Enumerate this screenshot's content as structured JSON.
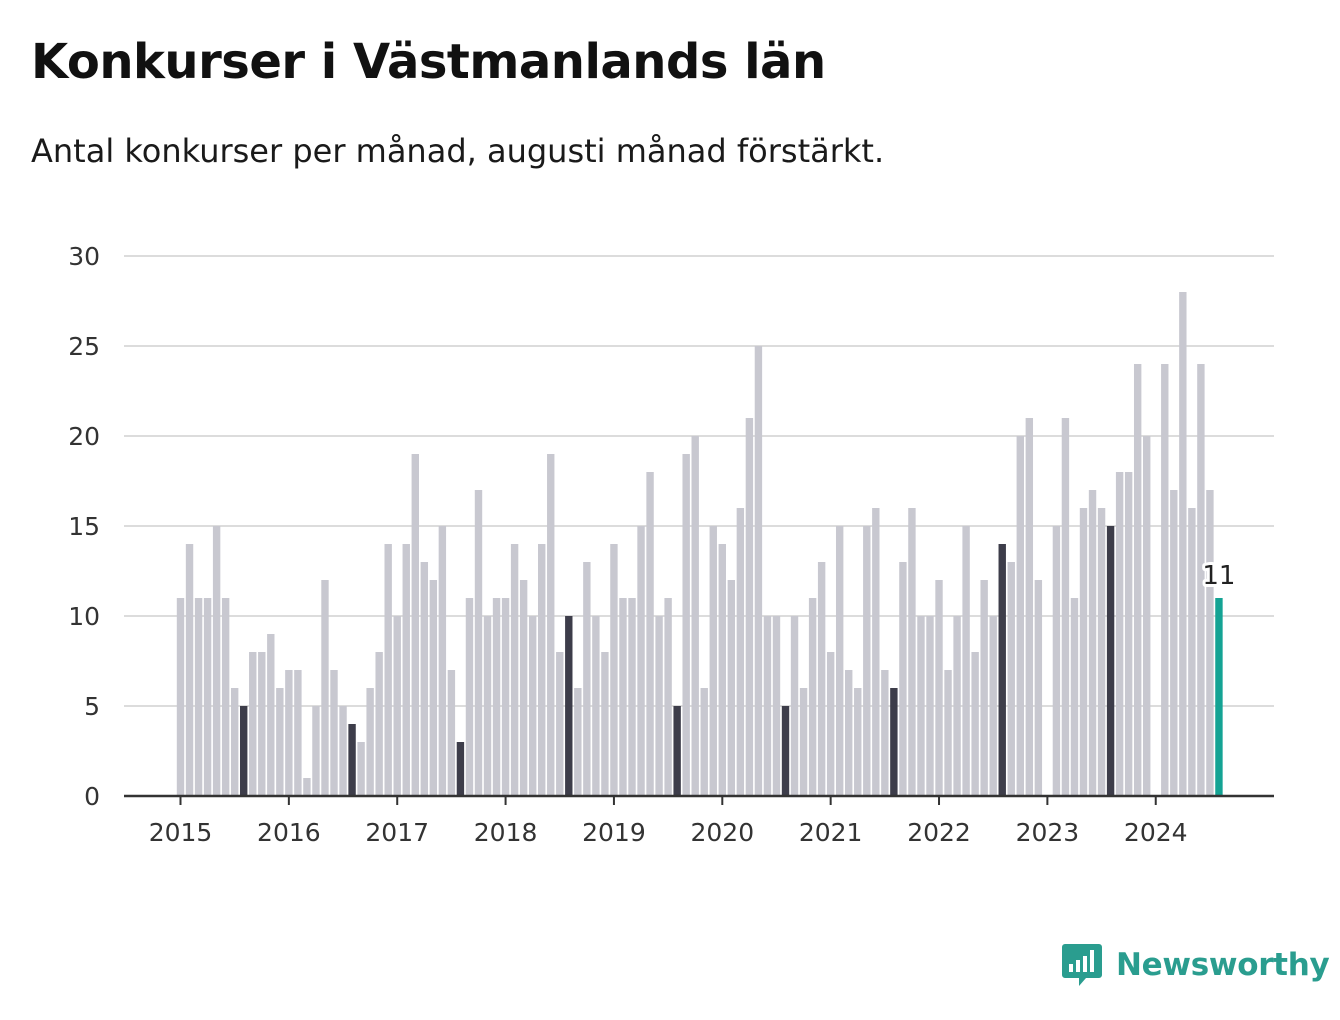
{
  "title": "Konkurser i Västmanlands län",
  "subtitle": "Antal konkurser per månad, augusti månad förstärkt.",
  "brand": {
    "name": "Newsworthy",
    "icon": "bar-chart-speech-bubble-icon"
  },
  "colors": {
    "bar": "#c8c8d0",
    "highlight": "#3d3d4a",
    "latest": "#14a394",
    "grid": "#dcdcdc",
    "axis": "#333333",
    "brand": "#2a9d8f"
  },
  "chart_data": {
    "type": "bar",
    "xlabel": "",
    "ylabel": "",
    "ylim": [
      0,
      30
    ],
    "yticks": [
      0,
      5,
      10,
      15,
      20,
      25,
      30
    ],
    "xtick_labels": [
      "2015",
      "2016",
      "2017",
      "2018",
      "2019",
      "2020",
      "2021",
      "2022",
      "2023",
      "2024"
    ],
    "grid": true,
    "start": "2015-01",
    "highlight_month": "augusti",
    "latest_label": "11",
    "values": [
      11,
      14,
      11,
      11,
      15,
      11,
      6,
      5,
      8,
      8,
      9,
      6,
      7,
      7,
      1,
      5,
      12,
      7,
      5,
      4,
      3,
      6,
      8,
      14,
      10,
      14,
      19,
      13,
      12,
      15,
      7,
      3,
      11,
      17,
      10,
      11,
      11,
      14,
      12,
      10,
      14,
      19,
      8,
      10,
      6,
      13,
      10,
      8,
      14,
      11,
      11,
      15,
      18,
      10,
      11,
      5,
      19,
      20,
      6,
      15,
      14,
      12,
      16,
      21,
      25,
      10,
      10,
      5,
      10,
      6,
      11,
      13,
      8,
      15,
      7,
      6,
      15,
      16,
      7,
      6,
      13,
      16,
      10,
      10,
      12,
      7,
      10,
      15,
      8,
      12,
      10,
      14,
      13,
      20,
      21,
      12,
      0,
      15,
      21,
      11,
      16,
      17,
      16,
      15,
      18,
      18,
      24,
      20,
      0,
      24,
      17,
      28,
      16,
      24,
      17,
      11
    ]
  }
}
